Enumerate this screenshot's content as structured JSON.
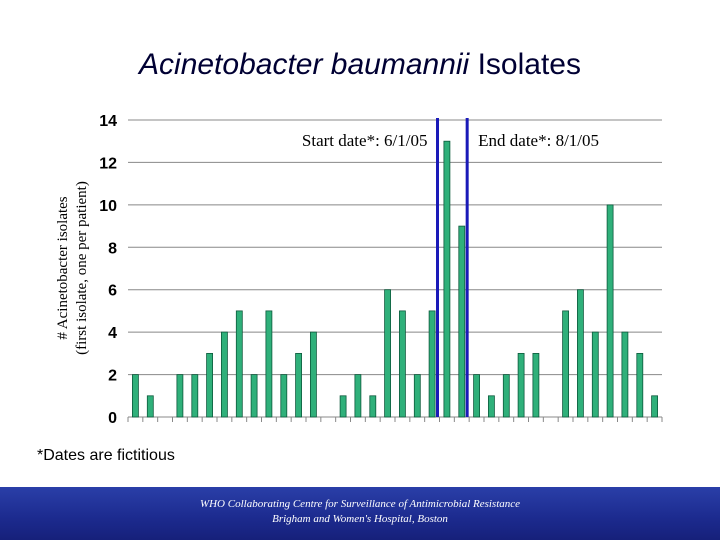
{
  "slide": {
    "title_italic": "Acinetobacter baumannii",
    "title_rest": " Isolates",
    "footnote": "*Dates are fictitious",
    "footer_line1": "WHO Collaborating Centre for Surveillance of Antimicrobial Resistance",
    "footer_line2": "Brigham and Women's Hospital, Boston"
  },
  "colors": {
    "bar_fill": "#2fb07a",
    "bar_edge": "#0d5a3c",
    "marker": "#1a1ab8",
    "grid": "#888888",
    "footer": "#1c2a8e"
  },
  "chart_data": {
    "type": "bar",
    "ylabel_line1": "# Acinetobacter isolates",
    "ylabel_line2": "(first isolate, one per patient)",
    "ylim": [
      0,
      14
    ],
    "yticks": [
      "0",
      "2",
      "4",
      "6",
      "8",
      "10",
      "12",
      "14"
    ],
    "grid": true,
    "values": [
      2,
      1,
      0,
      2,
      2,
      3,
      4,
      5,
      2,
      5,
      2,
      3,
      4,
      0,
      1,
      2,
      1,
      6,
      5,
      2,
      5,
      13,
      9,
      2,
      1,
      2,
      3,
      3,
      0,
      5,
      6,
      4,
      10,
      4,
      3,
      1
    ],
    "annotations": [
      {
        "text": "Start date*: 6/1/05",
        "after_bar_index": 20
      },
      {
        "text": "End date*: 8/1/05",
        "after_bar_index": 22
      }
    ]
  }
}
